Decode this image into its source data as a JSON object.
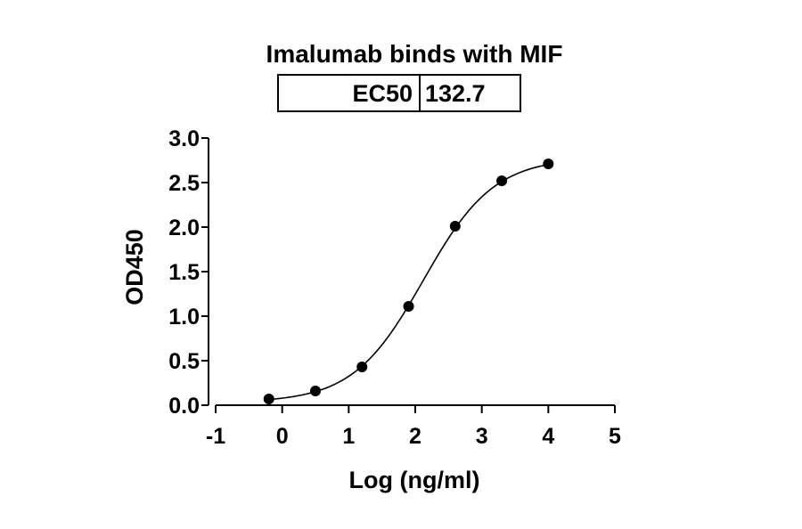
{
  "chart_data": {
    "type": "scatter",
    "title": "Imalumab binds with MIF",
    "xlabel": "Log (ng/ml)",
    "ylabel": "OD450",
    "xlim": [
      -1,
      5
    ],
    "ylim": [
      0,
      3.0
    ],
    "x_ticks": [
      "-1",
      "0",
      "1",
      "2",
      "3",
      "4",
      "5"
    ],
    "y_ticks": [
      "0.0",
      "0.5",
      "1.0",
      "1.5",
      "2.0",
      "2.5",
      "3.0"
    ],
    "grid": false,
    "legend": "none",
    "results_table": {
      "label": "EC50",
      "value": "132.7"
    },
    "fit": {
      "type": "four-parameter logistic",
      "bottom": 0.03,
      "top": 2.78,
      "log_ec50": 2.123,
      "hill_slope": 0.82
    },
    "series": [
      {
        "x": [
          -0.2,
          0.5,
          1.2,
          1.9,
          2.6,
          3.3,
          4.0
        ],
        "y": [
          0.07,
          0.16,
          0.43,
          1.11,
          2.01,
          2.52,
          2.71
        ]
      }
    ],
    "colors": {
      "points": "#000000",
      "line": "#000000",
      "axes": "#000000"
    }
  }
}
